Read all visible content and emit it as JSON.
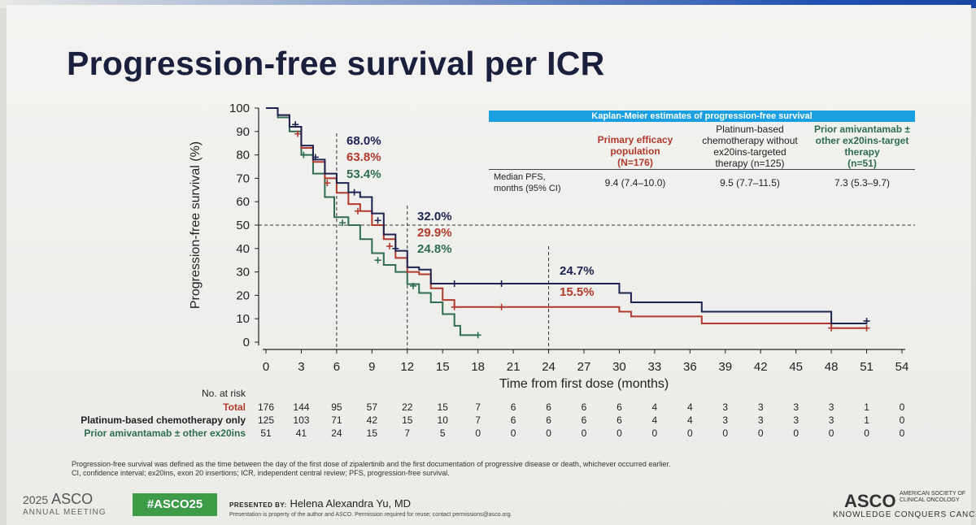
{
  "slide": {
    "title": "Progression-free survival per ICR",
    "footnote_1": "Progression-free survival was defined as the time between the day of the first dose of zipalertinib and the first documentation of progressive disease or death, whichever occurred earlier.",
    "footnote_2": "CI, confidence interval; ex20ins, exon 20 insertions; ICR, independent central review; PFS, progression-free survival.",
    "meeting_year": "2025",
    "meeting_org": "ASCO",
    "meeting_sub": "ANNUAL MEETING",
    "hashtag": "#ASCO25",
    "presented_by_label": "PRESENTED BY:",
    "presenter": "Helena Alexandra Yu, MD",
    "property_note": "Presentation is property of the author and ASCO. Permission required for reuse; contact permissions@asco.org.",
    "asco_logo": "ASCO",
    "asco_side_1": "AMERICAN SOCIETY OF",
    "asco_side_2": "CLINICAL ONCOLOGY",
    "tagline": "KNOWLEDGE CONQUERS CANCER"
  },
  "km_table": {
    "header": "Kaplan-Meier estimates of progression-free survival",
    "col1": [
      "Primary efficacy",
      "population",
      "(N=176)"
    ],
    "col2": [
      "Platinum-based",
      "chemotherapy without",
      "ex20ins-targeted",
      "therapy (n=125)"
    ],
    "col3": [
      "Prior amivantamab ±",
      "other ex20ins-target",
      "therapy",
      "(n=51)"
    ],
    "row_label": [
      "Median PFS,",
      "months (95% CI)"
    ],
    "values": [
      "9.4 (7.4–10.0)",
      "9.5 (7.7–11.5)",
      "7.3 (5.3–9.7)"
    ]
  },
  "chart_data": {
    "type": "line",
    "subtype": "kaplan-meier",
    "xlabel": "Time from first dose (months)",
    "ylabel": "Progression-free survival (%)",
    "xlim": [
      0,
      54
    ],
    "ylim": [
      0,
      100
    ],
    "x_ticks": [
      0,
      3,
      6,
      9,
      12,
      15,
      18,
      21,
      24,
      27,
      30,
      33,
      36,
      39,
      42,
      45,
      48,
      51,
      54
    ],
    "y_ticks": [
      0,
      10,
      20,
      30,
      40,
      50,
      60,
      70,
      80,
      90,
      100
    ],
    "colors": {
      "total": "#1f2350",
      "platinum": "#b13a2c",
      "amivantamab": "#2e6e4f"
    },
    "series": [
      {
        "name": "Total",
        "color": "#1f2350",
        "points": [
          [
            0,
            100
          ],
          [
            1,
            97
          ],
          [
            2,
            92
          ],
          [
            3,
            84
          ],
          [
            4,
            78
          ],
          [
            5,
            72
          ],
          [
            6,
            68
          ],
          [
            7,
            64
          ],
          [
            8,
            62
          ],
          [
            9,
            55
          ],
          [
            10,
            46
          ],
          [
            11,
            39
          ],
          [
            12,
            32
          ],
          [
            13,
            31
          ],
          [
            14,
            25
          ],
          [
            16,
            25
          ],
          [
            20,
            25
          ],
          [
            30,
            25
          ],
          [
            30,
            21
          ],
          [
            31,
            21
          ],
          [
            31,
            17
          ],
          [
            37,
            17
          ],
          [
            37,
            13
          ],
          [
            48,
            13
          ],
          [
            48,
            8
          ],
          [
            51,
            8
          ]
        ],
        "censors": [
          [
            2.5,
            93
          ],
          [
            4.2,
            79
          ],
          [
            7.5,
            64
          ],
          [
            9.5,
            52
          ],
          [
            11,
            40
          ],
          [
            16,
            25
          ],
          [
            20,
            25
          ],
          [
            51,
            9
          ]
        ]
      },
      {
        "name": "Platinum-based chemotherapy only",
        "color": "#b13a2c",
        "points": [
          [
            0,
            100
          ],
          [
            1,
            97
          ],
          [
            2,
            92
          ],
          [
            3,
            83
          ],
          [
            4,
            77
          ],
          [
            5,
            70
          ],
          [
            6,
            63.8
          ],
          [
            7,
            59
          ],
          [
            8,
            56
          ],
          [
            9,
            50
          ],
          [
            10,
            44
          ],
          [
            11,
            36
          ],
          [
            12,
            30
          ],
          [
            13,
            29
          ],
          [
            14,
            23
          ],
          [
            15,
            18
          ],
          [
            16,
            15
          ],
          [
            20,
            15
          ],
          [
            30,
            15
          ],
          [
            30,
            13
          ],
          [
            31,
            13
          ],
          [
            31,
            11
          ],
          [
            37,
            11
          ],
          [
            37,
            8
          ],
          [
            48,
            8
          ],
          [
            48,
            6
          ],
          [
            51,
            6
          ]
        ],
        "censors": [
          [
            2.7,
            89
          ],
          [
            5.2,
            68
          ],
          [
            7.8,
            56
          ],
          [
            10.5,
            41
          ],
          [
            16,
            15
          ],
          [
            20,
            15
          ],
          [
            48,
            6
          ],
          [
            51,
            6
          ]
        ]
      },
      {
        "name": "Prior amivantamab ± other ex20ins",
        "color": "#2e6e4f",
        "points": [
          [
            0,
            100
          ],
          [
            1,
            96
          ],
          [
            2,
            90
          ],
          [
            3,
            80
          ],
          [
            4,
            72
          ],
          [
            5,
            62
          ],
          [
            5.8,
            53.4
          ],
          [
            7,
            50
          ],
          [
            8,
            44
          ],
          [
            9,
            38
          ],
          [
            10,
            33
          ],
          [
            11,
            30
          ],
          [
            12,
            24.8
          ],
          [
            13,
            21
          ],
          [
            14,
            17
          ],
          [
            15,
            12
          ],
          [
            16,
            7
          ],
          [
            16.5,
            3
          ],
          [
            18,
            3
          ]
        ],
        "censors": [
          [
            3.2,
            80
          ],
          [
            6.5,
            51
          ],
          [
            9.5,
            35
          ],
          [
            12.5,
            24
          ],
          [
            18,
            3
          ]
        ]
      }
    ],
    "reference_lines": {
      "median_y": 50,
      "vlines_x": [
        6,
        12,
        24
      ]
    },
    "annotations": [
      {
        "x": 6,
        "labels": [
          "68.0%",
          "63.8%",
          "53.4%"
        ]
      },
      {
        "x": 12,
        "labels": [
          "32.0%",
          "29.9%",
          "24.8%"
        ]
      },
      {
        "x": 24,
        "labels": [
          "24.7%",
          "15.5%"
        ]
      }
    ],
    "at_risk": {
      "title": "No. at risk",
      "rows": [
        {
          "name": "Total",
          "values": [
            176,
            144,
            95,
            57,
            22,
            15,
            7,
            6,
            6,
            6,
            6,
            4,
            4,
            3,
            3,
            3,
            3,
            1,
            0
          ]
        },
        {
          "name": "Platinum-based chemotherapy only",
          "values": [
            125,
            103,
            71,
            42,
            15,
            10,
            7,
            6,
            6,
            6,
            6,
            4,
            4,
            3,
            3,
            3,
            3,
            1,
            0
          ]
        },
        {
          "name": "Prior amivantamab ± other ex20ins",
          "values": [
            51,
            41,
            24,
            15,
            7,
            5,
            0,
            0,
            0,
            0,
            0,
            0,
            0,
            0,
            0,
            0,
            0,
            0,
            0
          ]
        }
      ]
    }
  }
}
